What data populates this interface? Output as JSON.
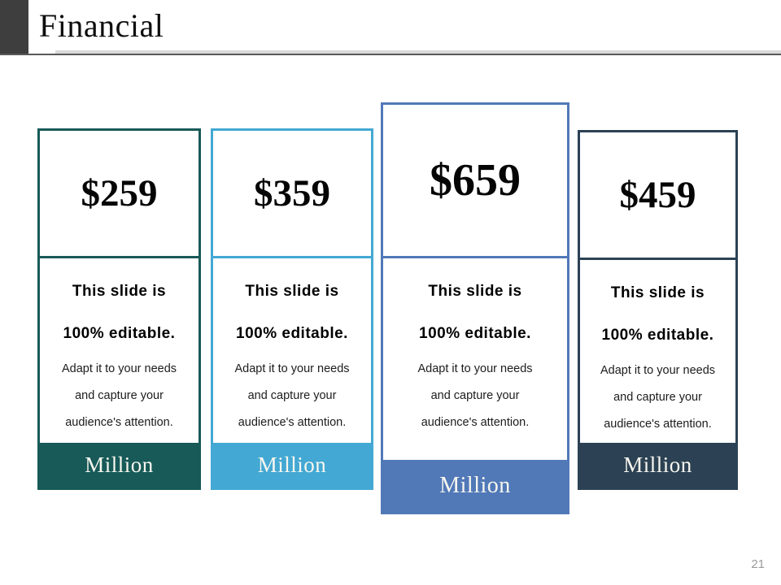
{
  "header": {
    "title": "Financial"
  },
  "cards": [
    {
      "price": "$259",
      "line1": "This slide is",
      "line2": "100% editable.",
      "line3": "Adapt it to your needs",
      "line4": "and capture your",
      "line5": "audience's attention.",
      "footer": "Million",
      "accent": "#175a58"
    },
    {
      "price": "$359",
      "line1": "This slide is",
      "line2": "100% editable.",
      "line3": "Adapt it to your needs",
      "line4": "and capture your",
      "line5": "audience's attention.",
      "footer": "Million",
      "accent": "#43a8d3"
    },
    {
      "price": "$659",
      "line1": "This slide is",
      "line2": "100% editable.",
      "line3": "Adapt it to your needs",
      "line4": "and capture your",
      "line5": "audience's attention.",
      "footer": "Million",
      "accent": "#5179b8"
    },
    {
      "price": "$459",
      "line1": "This slide is",
      "line2": "100% editable.",
      "line3": "Adapt it to your needs",
      "line4": "and capture your",
      "line5": "audience's attention.",
      "footer": "Million",
      "accent": "#2c4254"
    }
  ],
  "footer": {
    "page_number": "21"
  },
  "colors": {
    "title_square": "#3e3e3e",
    "rule_light": "#d9d9d9",
    "rule_dark": "#595959",
    "page_number": "#9a9a9a"
  }
}
